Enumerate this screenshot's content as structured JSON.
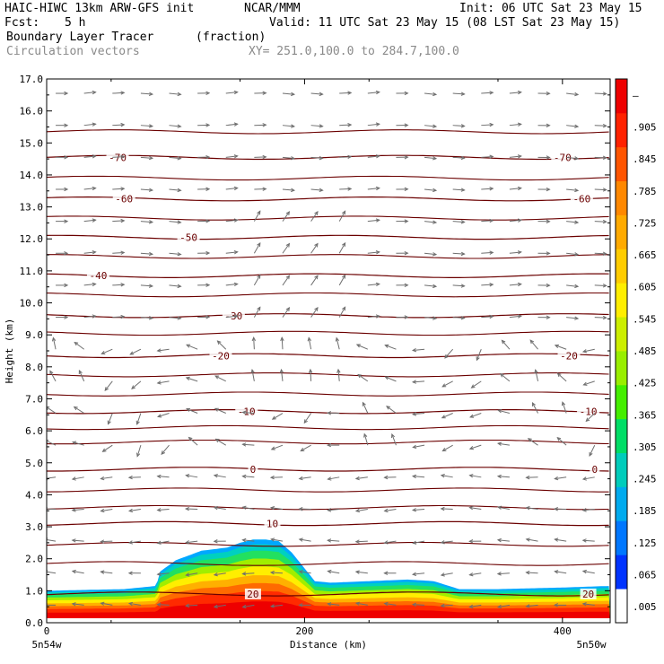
{
  "header": {
    "model": "HAIC-HIWC 13km ARW-GFS init",
    "org": "NCAR/MMM",
    "init": "Init: 06 UTC Sat 23 May 15",
    "fcst_label": "Fcst:",
    "fcst_value": "5 h",
    "valid": "Valid: 11 UTC Sat 23 May 15 (08 LST Sat 23 May 15)",
    "field1_name": "Boundary Layer Tracer",
    "field1_units": "(fraction)",
    "field2_name": "Circulation vectors",
    "xsec": "XY= 251.0,100.0 to 284.7,100.0"
  },
  "colors": {
    "contour": "#6b0000",
    "vector": "#6e6e6e",
    "colorbar": [
      "#ffffff",
      "#0033ff",
      "#0077ff",
      "#00aaee",
      "#00ccbb",
      "#00dd66",
      "#44ee00",
      "#99ee00",
      "#ccee00",
      "#ffee00",
      "#ffcc00",
      "#ffaa00",
      "#ff8800",
      "#ff5500",
      "#ff2200",
      "#ee0000"
    ]
  },
  "chart_data": {
    "type": "heatmap",
    "xlabel": "Distance (km)",
    "ylabel": "Height (km)",
    "xlim": [
      0,
      437
    ],
    "ylim": [
      0,
      17
    ],
    "x_ticks": [
      0,
      200,
      400
    ],
    "y_ticks": [
      "0.0",
      "1.0",
      "2.0",
      "3.0",
      "4.0",
      "5.0",
      "6.0",
      "7.0",
      "8.0",
      "9.0",
      "10.0",
      "11.0",
      "12.0",
      "13.0",
      "14.0",
      "15.0",
      "16.0",
      "17.0"
    ],
    "x_endpoints": {
      "left": "5n54w",
      "right": "5n50w"
    },
    "colorbar_labels": [
      "–",
      ".905",
      ".845",
      ".785",
      ".725",
      ".665",
      ".605",
      ".545",
      ".485",
      ".425",
      ".365",
      ".305",
      ".245",
      ".185",
      ".125",
      ".065",
      ".005"
    ],
    "tracer_top_km": {
      "x": [
        0,
        60,
        85,
        88,
        100,
        120,
        140,
        150,
        160,
        170,
        180,
        190,
        200,
        208,
        220,
        250,
        280,
        300,
        320,
        350,
        400,
        437
      ],
      "top": [
        1.0,
        1.05,
        1.15,
        1.6,
        1.95,
        2.25,
        2.35,
        2.5,
        2.6,
        2.6,
        2.55,
        2.2,
        1.7,
        1.3,
        1.25,
        1.3,
        1.35,
        1.3,
        1.05,
        1.05,
        1.1,
        1.15
      ]
    },
    "temperature_contours": [
      {
        "label": "-70",
        "height": 14.55,
        "label_x": [
          55,
          400
        ]
      },
      {
        "label": "-60",
        "height": 13.25,
        "label_x": [
          60,
          415
        ]
      },
      {
        "label": "-50",
        "height": 12.05,
        "label_x": [
          110,
          null
        ]
      },
      {
        "label": "-40",
        "height": 10.85,
        "label_x": [
          40,
          null
        ]
      },
      {
        "label": "-30",
        "height": 9.6,
        "label_x": [
          145,
          null
        ]
      },
      {
        "label": "-20",
        "height": 8.35,
        "label_x": [
          135,
          405
        ]
      },
      {
        "label": "-10",
        "height": 6.6,
        "label_x": [
          155,
          420
        ]
      },
      {
        "label": "0",
        "height": 4.8,
        "label_x": [
          160,
          425
        ]
      },
      {
        "label": "10",
        "height": 3.1,
        "label_x": [
          175,
          null
        ]
      },
      {
        "label": "20",
        "height": 0.9,
        "label_x": [
          160,
          420
        ]
      }
    ],
    "unlabeled_contour_heights": [
      15.35,
      13.9,
      12.65,
      11.45,
      10.25,
      9.05,
      7.75,
      7.15,
      6.1,
      5.65,
      4.15,
      3.6,
      2.45,
      1.85
    ]
  }
}
